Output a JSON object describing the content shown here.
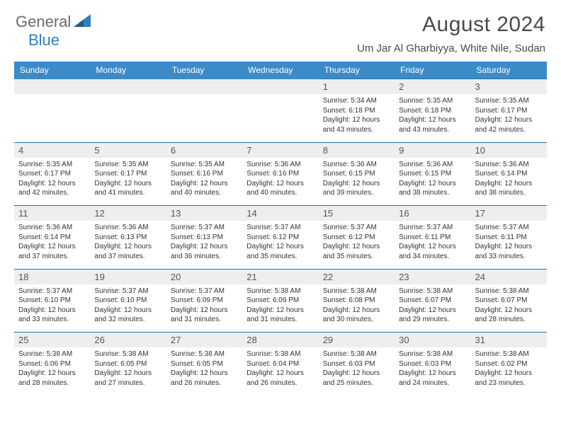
{
  "logo": {
    "general": "General",
    "blue": "Blue"
  },
  "title": "August 2024",
  "location": "Um Jar Al Gharbiyya, White Nile, Sudan",
  "colors": {
    "header_bg": "#3b8bc9",
    "header_text": "#ffffff",
    "rule": "#2f6fa6",
    "daynum_bg": "#eeeeee",
    "body_text": "#333333",
    "title_text": "#4a4a4a",
    "logo_gray": "#6a6a6a",
    "logo_blue": "#2f7fbf"
  },
  "dow": [
    "Sunday",
    "Monday",
    "Tuesday",
    "Wednesday",
    "Thursday",
    "Friday",
    "Saturday"
  ],
  "weeks": [
    [
      null,
      null,
      null,
      null,
      {
        "n": "1",
        "sr": "5:34 AM",
        "ss": "6:18 PM",
        "dl": "12 hours and 43 minutes."
      },
      {
        "n": "2",
        "sr": "5:35 AM",
        "ss": "6:18 PM",
        "dl": "12 hours and 43 minutes."
      },
      {
        "n": "3",
        "sr": "5:35 AM",
        "ss": "6:17 PM",
        "dl": "12 hours and 42 minutes."
      }
    ],
    [
      {
        "n": "4",
        "sr": "5:35 AM",
        "ss": "6:17 PM",
        "dl": "12 hours and 42 minutes."
      },
      {
        "n": "5",
        "sr": "5:35 AM",
        "ss": "6:17 PM",
        "dl": "12 hours and 41 minutes."
      },
      {
        "n": "6",
        "sr": "5:35 AM",
        "ss": "6:16 PM",
        "dl": "12 hours and 40 minutes."
      },
      {
        "n": "7",
        "sr": "5:36 AM",
        "ss": "6:16 PM",
        "dl": "12 hours and 40 minutes."
      },
      {
        "n": "8",
        "sr": "5:36 AM",
        "ss": "6:15 PM",
        "dl": "12 hours and 39 minutes."
      },
      {
        "n": "9",
        "sr": "5:36 AM",
        "ss": "6:15 PM",
        "dl": "12 hours and 38 minutes."
      },
      {
        "n": "10",
        "sr": "5:36 AM",
        "ss": "6:14 PM",
        "dl": "12 hours and 38 minutes."
      }
    ],
    [
      {
        "n": "11",
        "sr": "5:36 AM",
        "ss": "6:14 PM",
        "dl": "12 hours and 37 minutes."
      },
      {
        "n": "12",
        "sr": "5:36 AM",
        "ss": "6:13 PM",
        "dl": "12 hours and 37 minutes."
      },
      {
        "n": "13",
        "sr": "5:37 AM",
        "ss": "6:13 PM",
        "dl": "12 hours and 36 minutes."
      },
      {
        "n": "14",
        "sr": "5:37 AM",
        "ss": "6:12 PM",
        "dl": "12 hours and 35 minutes."
      },
      {
        "n": "15",
        "sr": "5:37 AM",
        "ss": "6:12 PM",
        "dl": "12 hours and 35 minutes."
      },
      {
        "n": "16",
        "sr": "5:37 AM",
        "ss": "6:11 PM",
        "dl": "12 hours and 34 minutes."
      },
      {
        "n": "17",
        "sr": "5:37 AM",
        "ss": "6:11 PM",
        "dl": "12 hours and 33 minutes."
      }
    ],
    [
      {
        "n": "18",
        "sr": "5:37 AM",
        "ss": "6:10 PM",
        "dl": "12 hours and 33 minutes."
      },
      {
        "n": "19",
        "sr": "5:37 AM",
        "ss": "6:10 PM",
        "dl": "12 hours and 32 minutes."
      },
      {
        "n": "20",
        "sr": "5:37 AM",
        "ss": "6:09 PM",
        "dl": "12 hours and 31 minutes."
      },
      {
        "n": "21",
        "sr": "5:38 AM",
        "ss": "6:09 PM",
        "dl": "12 hours and 31 minutes."
      },
      {
        "n": "22",
        "sr": "5:38 AM",
        "ss": "6:08 PM",
        "dl": "12 hours and 30 minutes."
      },
      {
        "n": "23",
        "sr": "5:38 AM",
        "ss": "6:07 PM",
        "dl": "12 hours and 29 minutes."
      },
      {
        "n": "24",
        "sr": "5:38 AM",
        "ss": "6:07 PM",
        "dl": "12 hours and 28 minutes."
      }
    ],
    [
      {
        "n": "25",
        "sr": "5:38 AM",
        "ss": "6:06 PM",
        "dl": "12 hours and 28 minutes."
      },
      {
        "n": "26",
        "sr": "5:38 AM",
        "ss": "6:05 PM",
        "dl": "12 hours and 27 minutes."
      },
      {
        "n": "27",
        "sr": "5:38 AM",
        "ss": "6:05 PM",
        "dl": "12 hours and 26 minutes."
      },
      {
        "n": "28",
        "sr": "5:38 AM",
        "ss": "6:04 PM",
        "dl": "12 hours and 26 minutes."
      },
      {
        "n": "29",
        "sr": "5:38 AM",
        "ss": "6:03 PM",
        "dl": "12 hours and 25 minutes."
      },
      {
        "n": "30",
        "sr": "5:38 AM",
        "ss": "6:03 PM",
        "dl": "12 hours and 24 minutes."
      },
      {
        "n": "31",
        "sr": "5:38 AM",
        "ss": "6:02 PM",
        "dl": "12 hours and 23 minutes."
      }
    ]
  ],
  "labels": {
    "sunrise": "Sunrise:",
    "sunset": "Sunset:",
    "daylight": "Daylight:"
  }
}
